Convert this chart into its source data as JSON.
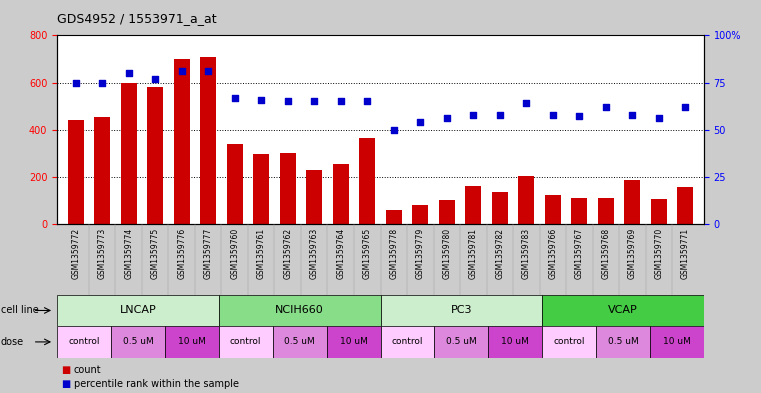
{
  "title": "GDS4952 / 1553971_a_at",
  "samples": [
    "GSM1359772",
    "GSM1359773",
    "GSM1359774",
    "GSM1359775",
    "GSM1359776",
    "GSM1359777",
    "GSM1359760",
    "GSM1359761",
    "GSM1359762",
    "GSM1359763",
    "GSM1359764",
    "GSM1359765",
    "GSM1359778",
    "GSM1359779",
    "GSM1359780",
    "GSM1359781",
    "GSM1359782",
    "GSM1359783",
    "GSM1359766",
    "GSM1359767",
    "GSM1359768",
    "GSM1359769",
    "GSM1359770",
    "GSM1359771"
  ],
  "counts": [
    440,
    455,
    600,
    580,
    700,
    710,
    340,
    295,
    300,
    230,
    255,
    365,
    60,
    80,
    100,
    160,
    135,
    205,
    125,
    110,
    110,
    185,
    105,
    155
  ],
  "percentile_ranks": [
    75,
    75,
    80,
    77,
    81,
    81,
    67,
    66,
    65,
    65,
    65,
    65,
    50,
    54,
    56,
    58,
    58,
    64,
    58,
    57,
    62,
    58,
    56,
    62
  ],
  "bar_color": "#cc0000",
  "dot_color": "#0000cc",
  "ylim_left": [
    0,
    800
  ],
  "ylim_right": [
    0,
    100
  ],
  "yticks_left": [
    0,
    200,
    400,
    600,
    800
  ],
  "yticks_right": [
    0,
    25,
    50,
    75,
    100
  ],
  "ytick_labels_right": [
    "0",
    "25",
    "50",
    "75",
    "100%"
  ],
  "cell_lines": [
    {
      "label": "LNCAP",
      "start": 0,
      "end": 6,
      "color": "#cceecc"
    },
    {
      "label": "NCIH660",
      "start": 6,
      "end": 12,
      "color": "#88dd88"
    },
    {
      "label": "PC3",
      "start": 12,
      "end": 18,
      "color": "#cceecc"
    },
    {
      "label": "VCAP",
      "start": 18,
      "end": 24,
      "color": "#44cc44"
    }
  ],
  "dose_groups": [
    {
      "label": "control",
      "start": 0,
      "end": 2,
      "color": "#ffccff"
    },
    {
      "label": "0.5 uM",
      "start": 2,
      "end": 4,
      "color": "#dd88dd"
    },
    {
      "label": "10 uM",
      "start": 4,
      "end": 6,
      "color": "#cc44cc"
    },
    {
      "label": "control",
      "start": 6,
      "end": 8,
      "color": "#ffccff"
    },
    {
      "label": "0.5 uM",
      "start": 8,
      "end": 10,
      "color": "#dd88dd"
    },
    {
      "label": "10 uM",
      "start": 10,
      "end": 12,
      "color": "#cc44cc"
    },
    {
      "label": "control",
      "start": 12,
      "end": 14,
      "color": "#ffccff"
    },
    {
      "label": "0.5 uM",
      "start": 14,
      "end": 16,
      "color": "#dd88dd"
    },
    {
      "label": "10 uM",
      "start": 16,
      "end": 18,
      "color": "#cc44cc"
    },
    {
      "label": "control",
      "start": 18,
      "end": 20,
      "color": "#ffccff"
    },
    {
      "label": "0.5 uM",
      "start": 20,
      "end": 22,
      "color": "#dd88dd"
    },
    {
      "label": "10 uM",
      "start": 22,
      "end": 24,
      "color": "#cc44cc"
    }
  ],
  "xtick_bg": "#cccccc",
  "bg_color": "#cccccc",
  "plot_bg": "#ffffff",
  "legend_count_color": "#cc0000",
  "legend_dot_color": "#0000cc"
}
